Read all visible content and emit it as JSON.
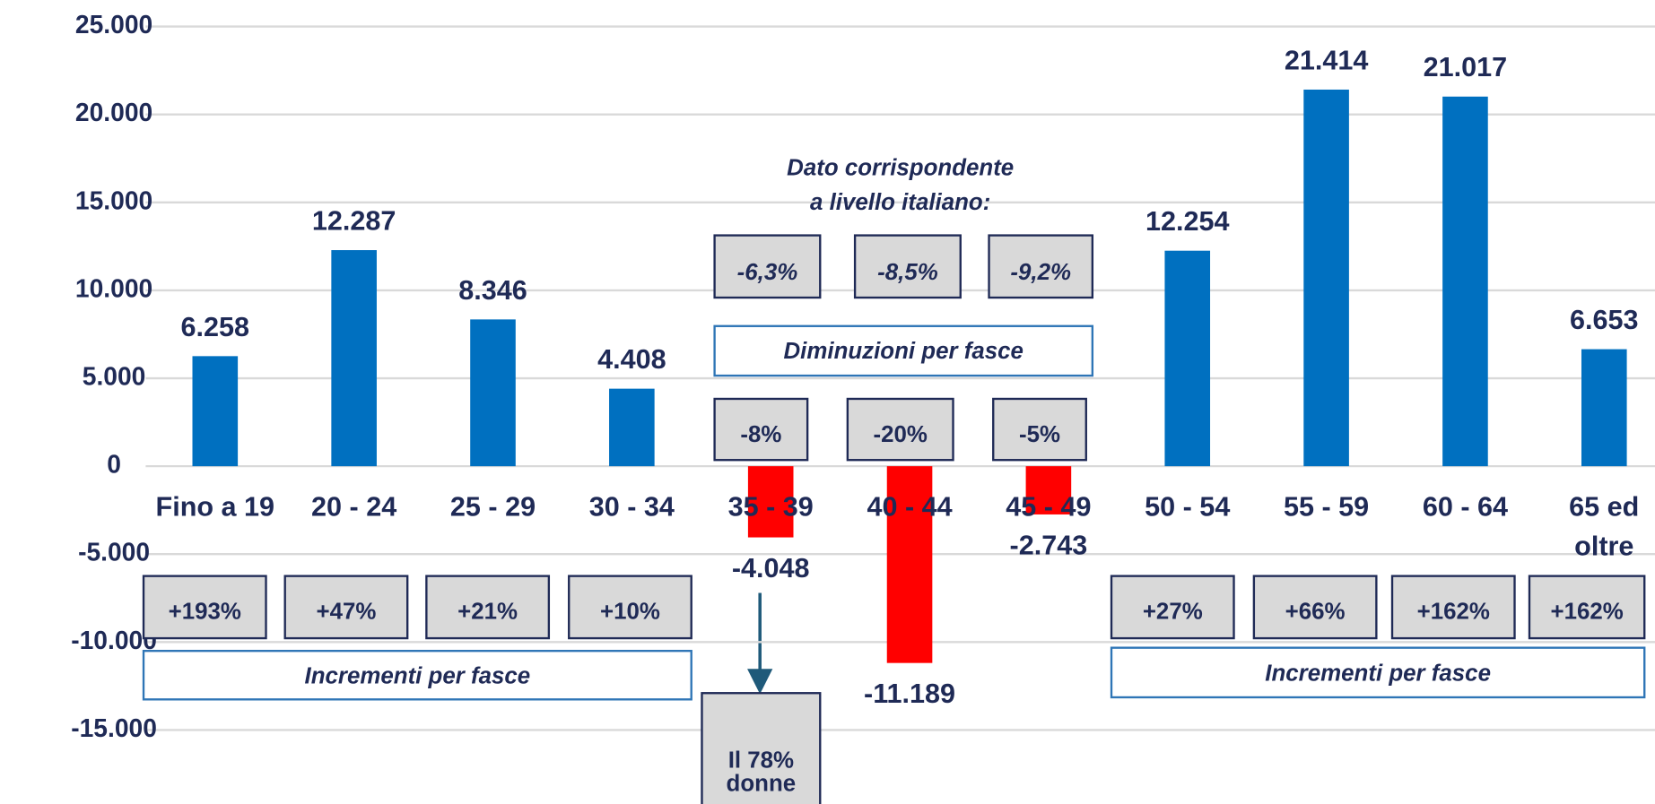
{
  "chart_data": {
    "type": "bar",
    "categories": [
      "Fino a 19",
      "20  - 24",
      "25  - 29",
      "30  - 34",
      "35  - 39",
      "40  - 44",
      "45  - 49",
      "50  - 54",
      "55  - 59",
      "60  - 64",
      "65 ed\noltre"
    ],
    "values": [
      6258,
      12287,
      8346,
      4408,
      -4048,
      -11189,
      -2743,
      12254,
      21414,
      21017,
      6653
    ],
    "value_labels": [
      "6.258",
      "12.287",
      "8.346",
      "4.408",
      "-4.048",
      "-11.189",
      "-2.743",
      "12.254",
      "21.414",
      "21.017",
      "6.653"
    ],
    "colors": [
      "#0070c0",
      "#0070c0",
      "#0070c0",
      "#0070c0",
      "#ff0000",
      "#ff0000",
      "#ff0000",
      "#0070c0",
      "#0070c0",
      "#0070c0",
      "#0070c0"
    ],
    "ylim": [
      -15000,
      25000
    ],
    "yticks": [
      {
        "value": -15000,
        "label": "-15.000"
      },
      {
        "value": -10000,
        "label": "-10.000"
      },
      {
        "value": -5000,
        "label": "-5.000"
      },
      0,
      {
        "value": 5000,
        "label": "5.000"
      },
      {
        "value": 10000,
        "label": "10.000"
      },
      {
        "value": 15000,
        "label": "15.000"
      },
      {
        "value": 20000,
        "label": "20.000"
      },
      {
        "value": 25000,
        "label": "25.000"
      }
    ],
    "grid": true,
    "annotations": {
      "increments": [
        "+193%",
        "+47%",
        "+21%",
        "+10%",
        "+27%",
        "+66%",
        "+162%",
        "+162%"
      ],
      "increments_labels": [
        "Incrementi per fasce",
        "Incrementi per fasce"
      ],
      "decreases": [
        "-8%",
        "-20%",
        "-5%"
      ],
      "decreases_label": "Diminuzioni per fasce",
      "italy_note": [
        "Dato corrispondente",
        "a livello italiano:"
      ],
      "italy_values": [
        "-6,3%",
        "-8,5%",
        "-9,2%"
      ],
      "women_note": [
        "Il 78%",
        "donne"
      ]
    }
  }
}
